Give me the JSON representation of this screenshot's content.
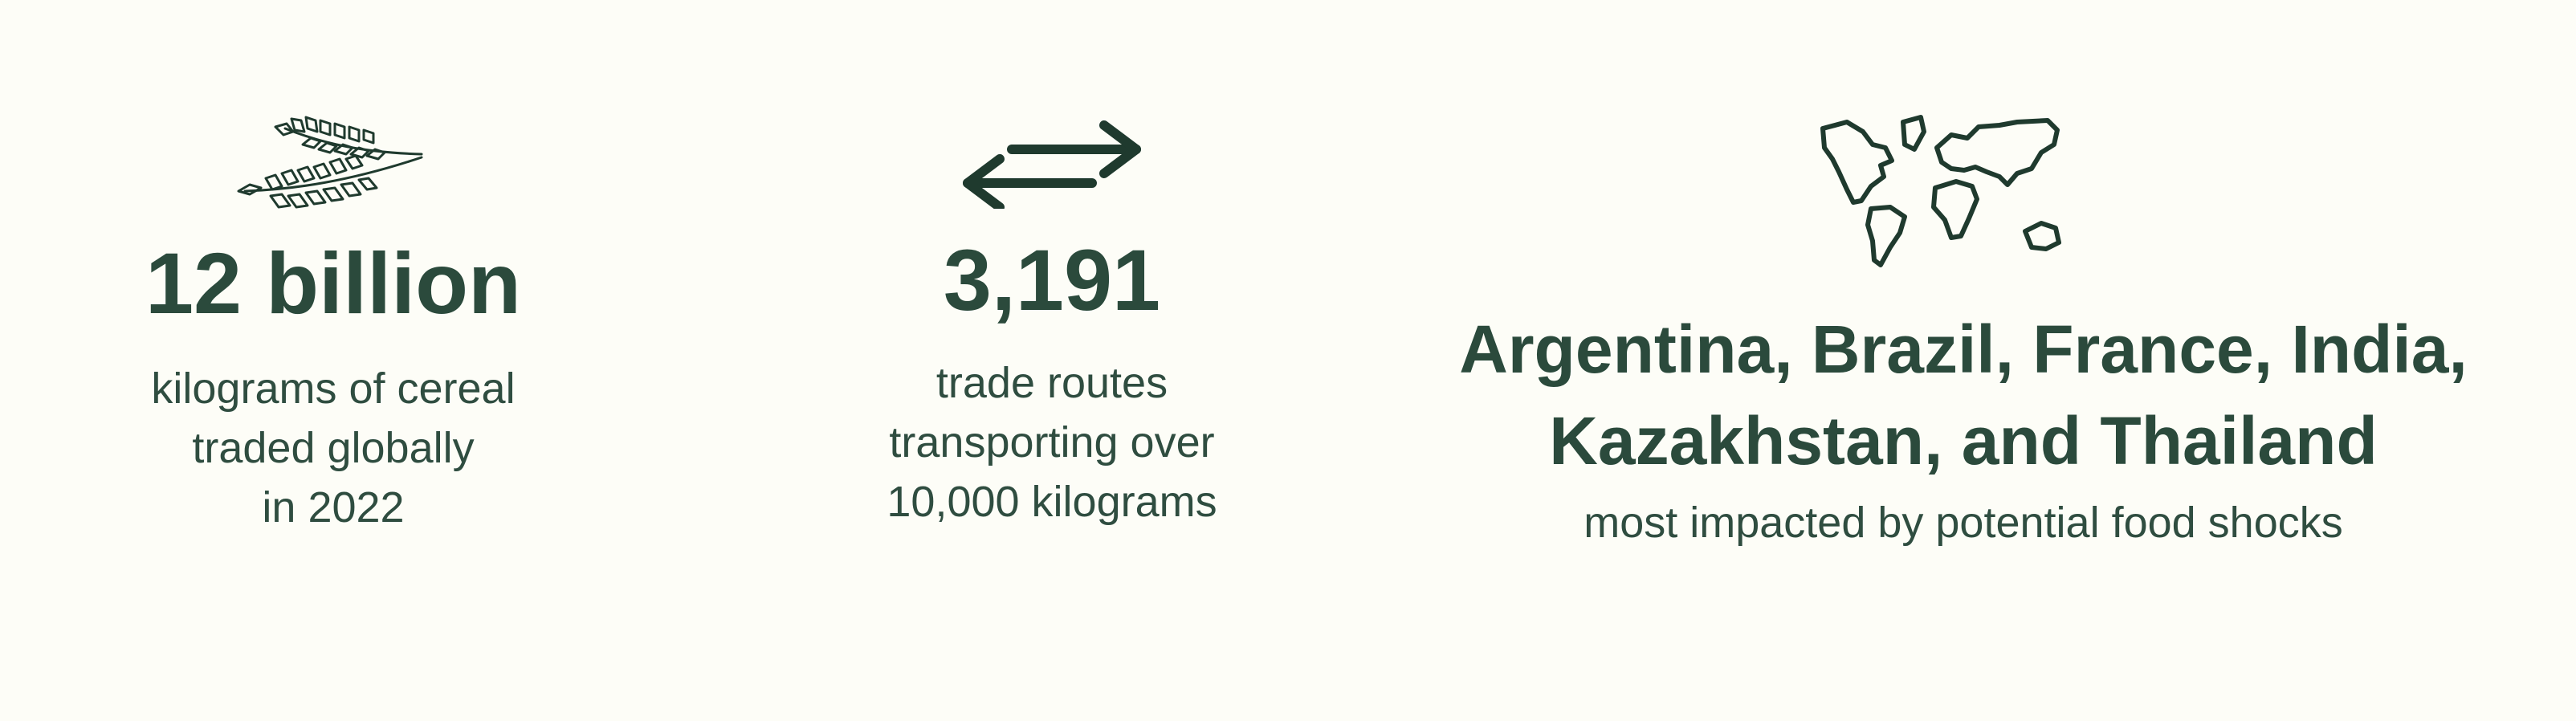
{
  "stats": [
    {
      "icon": "wheat-icon",
      "value": "12 billion",
      "description_lines": [
        "kilograms of cereal",
        "traded globally",
        "in 2022"
      ]
    },
    {
      "icon": "exchange-arrows-icon",
      "value": "3,191",
      "description_lines": [
        "trade routes",
        "transporting over",
        "10,000 kilograms"
      ]
    },
    {
      "icon": "world-map-icon",
      "value_lines": [
        "Argentina, Brazil, France, India,",
        "Kazakhstan, and Thailand"
      ],
      "description": "most impacted by potential food shocks"
    }
  ],
  "colors": {
    "background": "#fdfdf7",
    "text": "#2b4a3c",
    "icon_stroke": "#1f3a2e"
  }
}
